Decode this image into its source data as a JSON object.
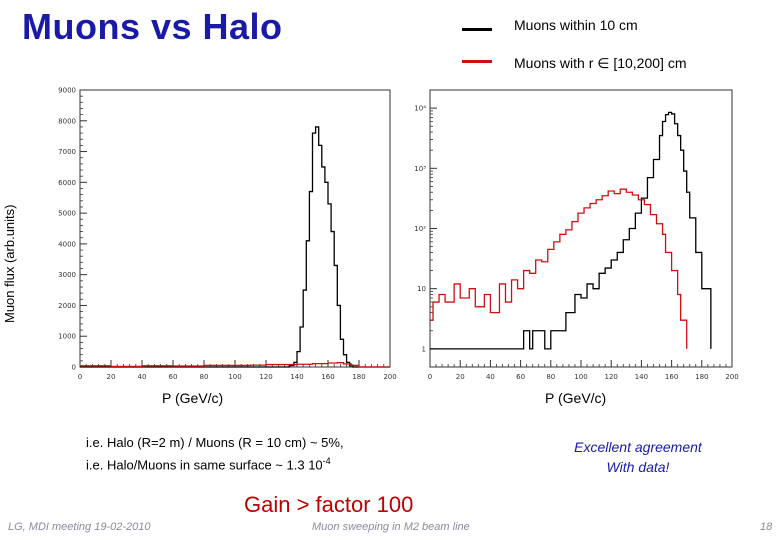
{
  "slide": {
    "title": "Muons vs Halo",
    "legend": [
      {
        "label": "Muons within 10 cm",
        "color": "#000000"
      },
      {
        "label": "Muons with r ∈ [10,200] cm",
        "color": "#d01010"
      }
    ],
    "ylabel": "Muon flux (arb.units)",
    "note_line1": "i.e. Halo (R=2 m) / Muons (R = 10 cm)  ~ 5%,",
    "note_line2_pre": "i.e. Halo/Muons in same surface ~ 1.3 10",
    "note_line2_sup": "-4",
    "agreement_line1": "Excellent agreement",
    "agreement_line2": "With data!",
    "gain": "Gain > factor 100",
    "footer_left": "LG, MDI meeting 19-02-2010",
    "footer_center": "Muon sweeping in M2 beam line",
    "page_number": "18"
  },
  "chart_data": [
    {
      "type": "line",
      "scale": "linear",
      "xlabel": "P (GeV/c)",
      "xlim": [
        0,
        200
      ],
      "ylim": [
        0,
        9000
      ],
      "x_ticks": [
        0,
        20,
        40,
        60,
        80,
        100,
        120,
        140,
        160,
        180,
        200
      ],
      "x_tick_labels": [
        "0",
        "20",
        "40",
        "60",
        "80",
        "100",
        "120",
        "140",
        "160",
        "180",
        "200"
      ],
      "y_ticks": [
        0,
        1000,
        2000,
        3000,
        4000,
        5000,
        6000,
        7000,
        8000,
        9000
      ],
      "y_tick_labels": [
        "0",
        "1000",
        "2000",
        "3000",
        "4000",
        "5000",
        "6000",
        "7000",
        "8000",
        "9000"
      ],
      "series": [
        {
          "color": "#000000",
          "x": [
            0,
            130,
            135,
            138,
            140,
            142,
            144,
            146,
            148,
            150,
            152,
            154,
            156,
            158,
            160,
            162,
            164,
            166,
            168,
            170,
            172,
            174,
            176,
            180,
            200
          ],
          "y": [
            0,
            0,
            50,
            150,
            500,
            1300,
            2500,
            4100,
            5700,
            7600,
            7800,
            7200,
            6500,
            6000,
            5300,
            4400,
            3300,
            2000,
            900,
            400,
            150,
            40,
            0,
            0,
            0
          ]
        },
        {
          "color": "#d01010",
          "x": [
            0,
            20,
            40,
            60,
            80,
            100,
            110,
            120,
            130,
            140,
            150,
            160,
            166,
            170,
            175,
            180,
            200
          ],
          "y": [
            40,
            20,
            40,
            30,
            50,
            50,
            60,
            80,
            80,
            90,
            110,
            130,
            140,
            100,
            50,
            0,
            0
          ]
        }
      ]
    },
    {
      "type": "line",
      "scale": "log",
      "xlabel": "P (GeV/c)",
      "xlim": [
        0,
        200
      ],
      "ylim": [
        0.5,
        20000
      ],
      "x_ticks": [
        0,
        20,
        40,
        60,
        80,
        100,
        120,
        140,
        160,
        180,
        200
      ],
      "x_tick_labels": [
        "0",
        "20",
        "40",
        "60",
        "80",
        "100",
        "120",
        "140",
        "160",
        "180",
        "200"
      ],
      "y_ticks": [
        1,
        10,
        100,
        1000,
        10000
      ],
      "y_tick_labels": [
        "1",
        "10",
        "10²",
        "10³",
        "10⁴"
      ],
      "series": [
        {
          "color": "#000000",
          "x": [
            0,
            60,
            62,
            66,
            68,
            76,
            80,
            90,
            96,
            100,
            104,
            108,
            112,
            116,
            120,
            124,
            128,
            132,
            136,
            140,
            144,
            148,
            152,
            154,
            156,
            158,
            160,
            162,
            164,
            166,
            168,
            170,
            172,
            176,
            180,
            186
          ],
          "y": [
            1,
            1,
            2,
            1,
            2,
            1,
            2,
            4,
            8,
            7,
            12,
            10,
            18,
            22,
            30,
            40,
            65,
            100,
            180,
            320,
            700,
            1400,
            3500,
            6000,
            7800,
            8500,
            8000,
            5500,
            3500,
            2000,
            900,
            400,
            150,
            40,
            10,
            1
          ]
        },
        {
          "color": "#d01010",
          "x": [
            0,
            2,
            6,
            10,
            16,
            20,
            26,
            30,
            36,
            40,
            46,
            50,
            54,
            58,
            62,
            66,
            70,
            74,
            78,
            82,
            86,
            90,
            94,
            98,
            102,
            106,
            110,
            114,
            118,
            122,
            126,
            130,
            134,
            138,
            142,
            146,
            150,
            154,
            156,
            160,
            164,
            166,
            170
          ],
          "y": [
            3,
            6,
            8,
            6,
            12,
            7,
            10,
            5,
            8,
            4,
            12,
            6,
            14,
            10,
            20,
            18,
            30,
            28,
            45,
            60,
            80,
            95,
            130,
            180,
            220,
            260,
            300,
            350,
            420,
            380,
            450,
            400,
            360,
            300,
            250,
            170,
            120,
            80,
            40,
            20,
            8,
            3,
            1
          ]
        }
      ]
    }
  ]
}
